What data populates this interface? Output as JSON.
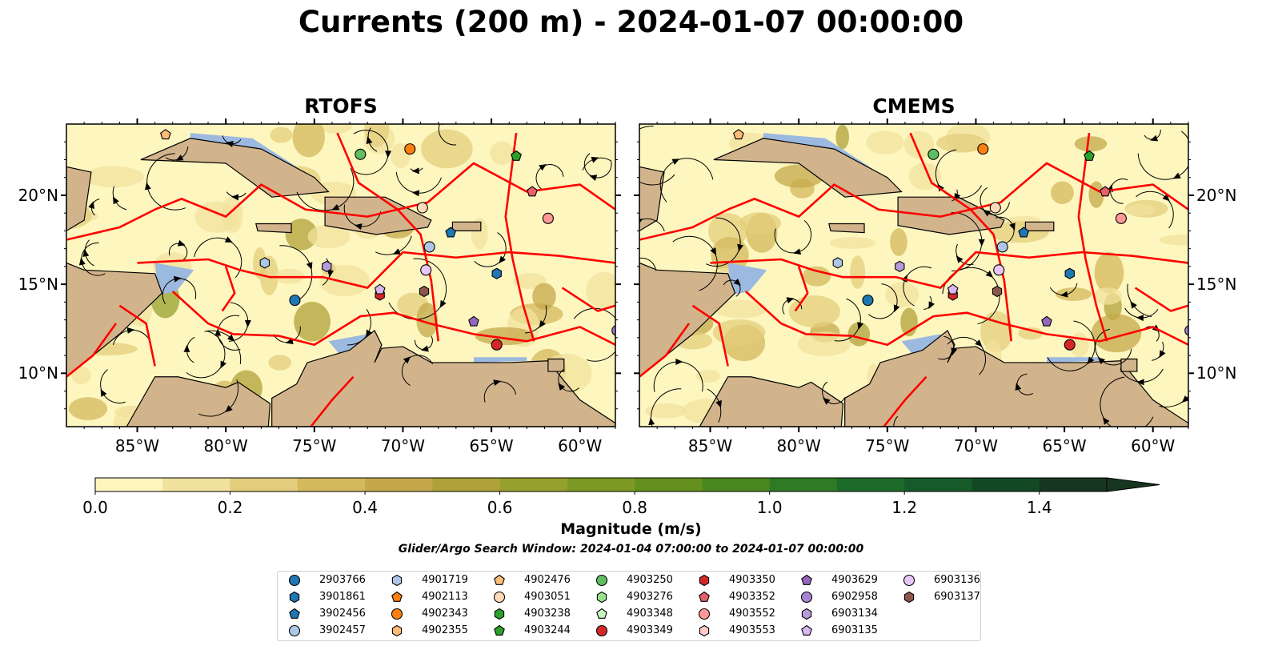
{
  "title": "Currents (200 m) - 2024-01-07 00:00:00",
  "panels": [
    {
      "title": "RTOFS"
    },
    {
      "title": "CMEMS"
    }
  ],
  "axes": {
    "x_ticks": [
      "85°W",
      "80°W",
      "75°W",
      "70°W",
      "65°W",
      "60°W"
    ],
    "y_ticks": [
      "20°N",
      "15°N",
      "10°N"
    ],
    "x_range_deg": [
      -89,
      -58
    ],
    "y_range_deg": [
      7,
      24
    ]
  },
  "colorbar": {
    "label": "Magnitude (m/s)",
    "ticks": [
      "0.0",
      "0.2",
      "0.4",
      "0.6",
      "0.8",
      "1.0",
      "1.2",
      "1.4"
    ],
    "range": [
      0,
      1.5
    ],
    "extend": "max",
    "colors": [
      "#fdf6bf",
      "#f1e29d",
      "#e3cd7c",
      "#d3b85c",
      "#c4a84a",
      "#b0a23a",
      "#96a02c",
      "#7c9a23",
      "#63901f",
      "#4b871f",
      "#2f7a25",
      "#1c6b2a",
      "#165a29",
      "#134826",
      "#17361f"
    ]
  },
  "search_window": "Glider/Argo Search Window: 2024-01-04 07:00:00 to 2024-01-07 00:00:00",
  "legend": [
    {
      "id": "2903766",
      "marker": "circle",
      "color": "#1f77b4"
    },
    {
      "id": "3901861",
      "marker": "hexagon",
      "color": "#1f77b4"
    },
    {
      "id": "3902456",
      "marker": "pentagon",
      "color": "#1f77b4"
    },
    {
      "id": "3902457",
      "marker": "circle",
      "color": "#aec7e8"
    },
    {
      "id": "4901719",
      "marker": "hexagon",
      "color": "#aec7e8"
    },
    {
      "id": "4902113",
      "marker": "pentagon",
      "color": "#ff7f0e"
    },
    {
      "id": "4902343",
      "marker": "circle",
      "color": "#ff7f0e"
    },
    {
      "id": "4902355",
      "marker": "hexagon",
      "color": "#ffbb78"
    },
    {
      "id": "4902476",
      "marker": "pentagon",
      "color": "#ffbb78"
    },
    {
      "id": "4903051",
      "marker": "circle",
      "color": "#ffdab9"
    },
    {
      "id": "4903238",
      "marker": "hexagon",
      "color": "#2ca02c"
    },
    {
      "id": "4903244",
      "marker": "pentagon",
      "color": "#2ca02c"
    },
    {
      "id": "4903250",
      "marker": "circle",
      "color": "#5fbf5f"
    },
    {
      "id": "4903276",
      "marker": "hexagon",
      "color": "#98df8a"
    },
    {
      "id": "4903348",
      "marker": "pentagon",
      "color": "#c7f5c0"
    },
    {
      "id": "4903349",
      "marker": "circle",
      "color": "#d62728"
    },
    {
      "id": "4903350",
      "marker": "hexagon",
      "color": "#d62728"
    },
    {
      "id": "4903352",
      "marker": "pentagon",
      "color": "#e8606a"
    },
    {
      "id": "4903552",
      "marker": "circle",
      "color": "#ff9896"
    },
    {
      "id": "4903553",
      "marker": "hexagon",
      "color": "#ffc8c8"
    },
    {
      "id": "4903629",
      "marker": "pentagon",
      "color": "#9467bd"
    },
    {
      "id": "6902958",
      "marker": "circle",
      "color": "#a783d1"
    },
    {
      "id": "6903134",
      "marker": "hexagon",
      "color": "#b89ad9"
    },
    {
      "id": "6903135",
      "marker": "pentagon",
      "color": "#d8b8f0"
    },
    {
      "id": "6903136",
      "marker": "circle",
      "color": "#e8c8f8"
    },
    {
      "id": "6903137",
      "marker": "hexagon",
      "color": "#8c564b"
    }
  ],
  "colors": {
    "land": "#d2b48c",
    "shallow_water": "#9cb9e0",
    "eez_lines": "#ff0000",
    "streamlines": "#000000"
  },
  "float_positions": [
    {
      "id": "2903766",
      "lon": -76.1,
      "lat": 14.1
    },
    {
      "id": "3901861",
      "lon": -64.7,
      "lat": 15.6
    },
    {
      "id": "3902456",
      "lon": -67.3,
      "lat": 17.9
    },
    {
      "id": "3902457",
      "lon": -68.5,
      "lat": 17.1
    },
    {
      "id": "4901719",
      "lon": -77.8,
      "lat": 16.2
    },
    {
      "id": "4902343",
      "lon": -69.6,
      "lat": 22.6
    },
    {
      "id": "4902476",
      "lon": -83.4,
      "lat": 23.4
    },
    {
      "id": "4903051",
      "lon": -68.9,
      "lat": 19.3
    },
    {
      "id": "4903244",
      "lon": -63.6,
      "lat": 22.2
    },
    {
      "id": "4903250",
      "lon": -72.4,
      "lat": 22.3
    },
    {
      "id": "4903349",
      "lon": -64.7,
      "lat": 11.6
    },
    {
      "id": "4903350",
      "lon": -71.3,
      "lat": 14.4
    },
    {
      "id": "4903352",
      "lon": -62.7,
      "lat": 20.2
    },
    {
      "id": "4903552",
      "lon": -61.8,
      "lat": 18.7
    },
    {
      "id": "4903629",
      "lon": -66.0,
      "lat": 12.9
    },
    {
      "id": "6902958",
      "lon": -57.9,
      "lat": 12.4
    },
    {
      "id": "6903134",
      "lon": -74.3,
      "lat": 16.0
    },
    {
      "id": "6903135",
      "lon": -71.3,
      "lat": 14.7
    },
    {
      "id": "6903136",
      "lon": -68.7,
      "lat": 15.8
    },
    {
      "id": "6903137",
      "lon": -68.8,
      "lat": 14.6
    }
  ]
}
